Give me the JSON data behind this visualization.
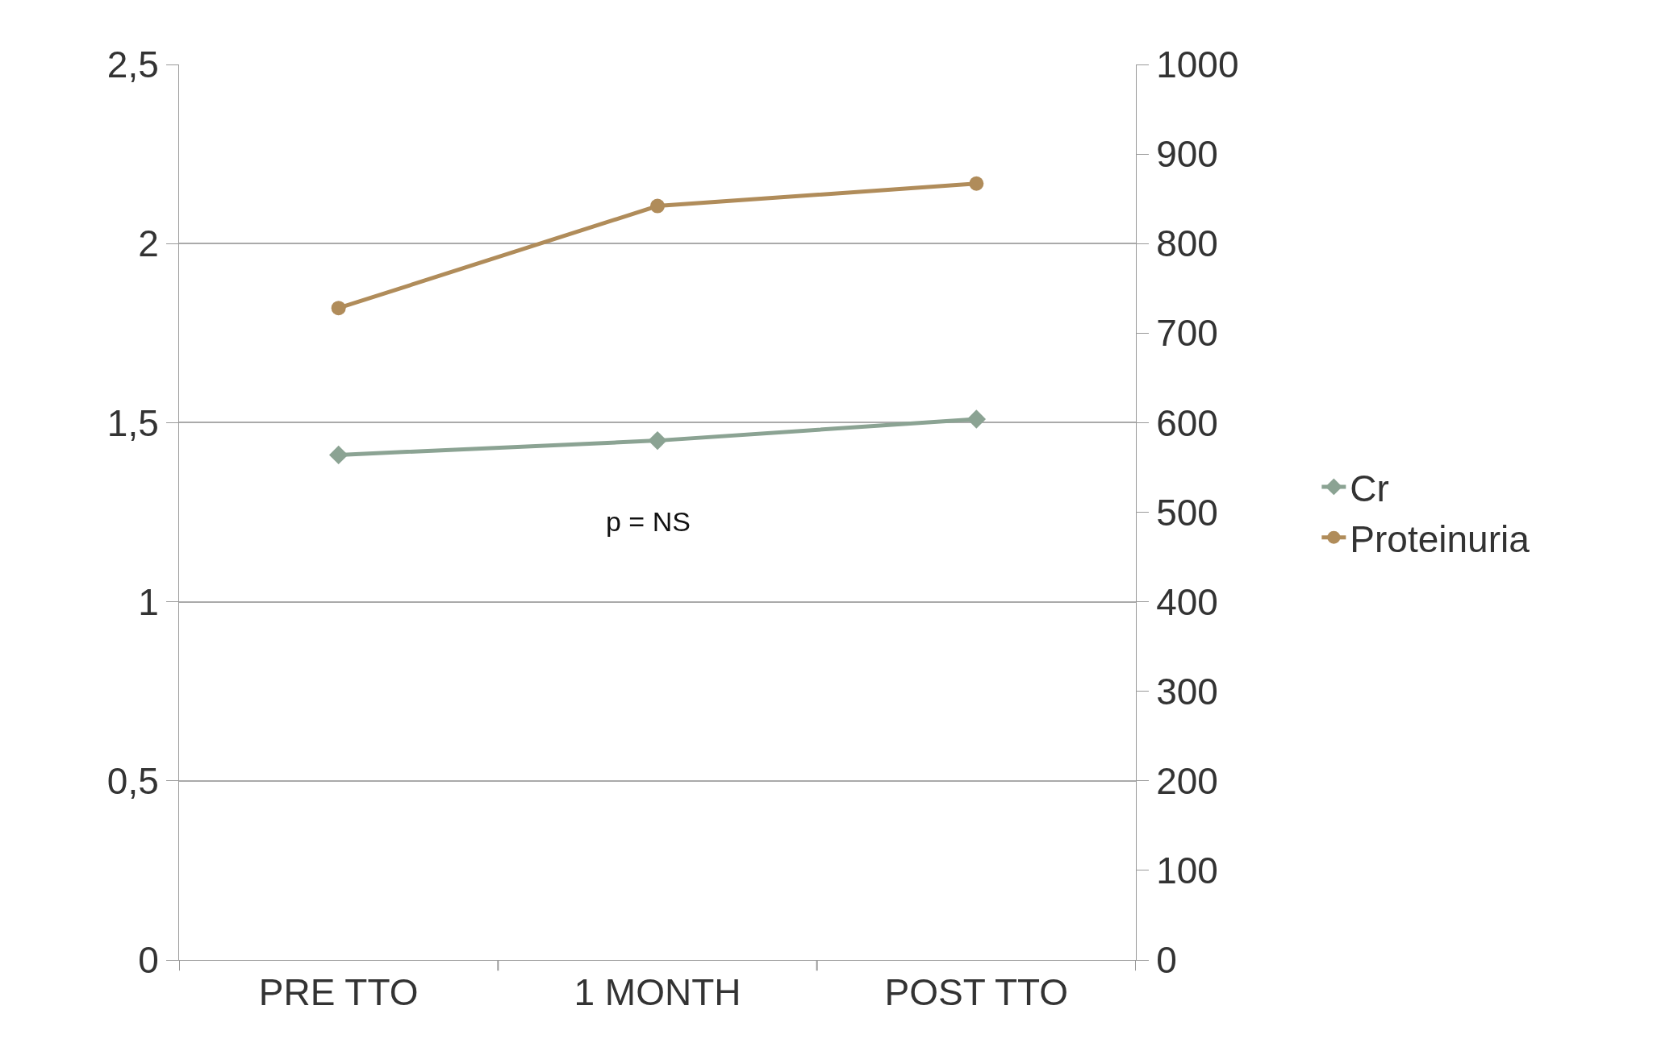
{
  "chart_data": {
    "type": "line",
    "categories": [
      "PRE TTO",
      "1 MONTH",
      "POST TTO"
    ],
    "series": [
      {
        "name": "Cr",
        "color": "#8ba393",
        "values": [
          1.41,
          1.45,
          1.51
        ],
        "marker": "diamond"
      },
      {
        "name": "Proteinuria",
        "color": "#b08c5a",
        "values": [
          728,
          842,
          867
        ],
        "marker": "circle",
        "axis": "y2"
      }
    ],
    "ylim": [
      0,
      2.5
    ],
    "yticks": [
      0,
      {
        "value": 0.5,
        "label": "0,5"
      },
      1,
      {
        "value": 1.5,
        "label": "1,5"
      },
      2,
      {
        "value": 2.5,
        "label": "2,5"
      }
    ],
    "y2lim": [
      0,
      1000
    ],
    "y2ticks": [
      0,
      100,
      200,
      300,
      400,
      500,
      600,
      700,
      800,
      900,
      1000
    ],
    "grid": "y",
    "legend": "right",
    "line_style": "solid",
    "annotations": [
      "p = NS"
    ]
  }
}
